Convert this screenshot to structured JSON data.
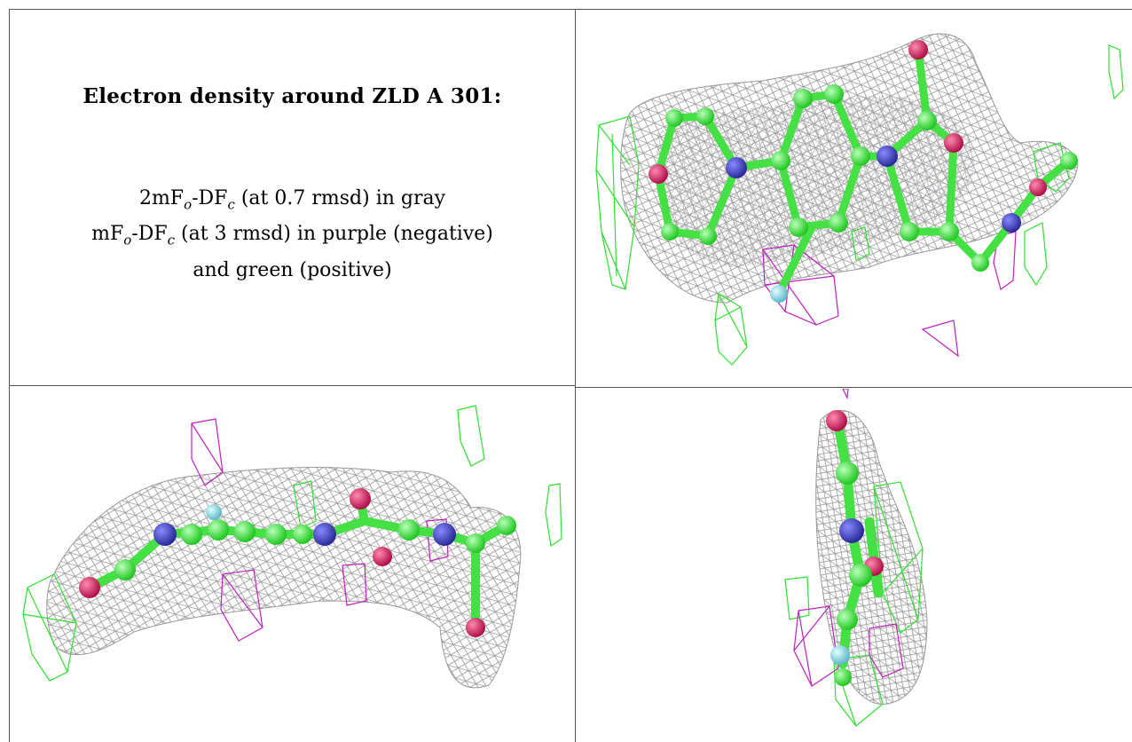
{
  "caption": {
    "title": "Electron density around ZLD A 301:",
    "line1": "2mFₒ-DFᴄ (at 0.7 rmsd) in gray",
    "line2": "mFₒ-DFᴄ (at 3 rmsd) in purple (negative)",
    "line3": "and green (positive)"
  },
  "colors": {
    "mesh_2fofc": "#9a9a9a",
    "mesh_negative": "#c020c0",
    "mesh_positive": "#30e030",
    "carbon": "#4cf04c",
    "nitrogen": "#4a4ac8",
    "oxygen": "#e02a6a",
    "fluorine": "#8ad8e0"
  },
  "panels": [
    {
      "view": "view-1"
    },
    {
      "view": "view-2"
    },
    {
      "view": "view-3"
    }
  ]
}
